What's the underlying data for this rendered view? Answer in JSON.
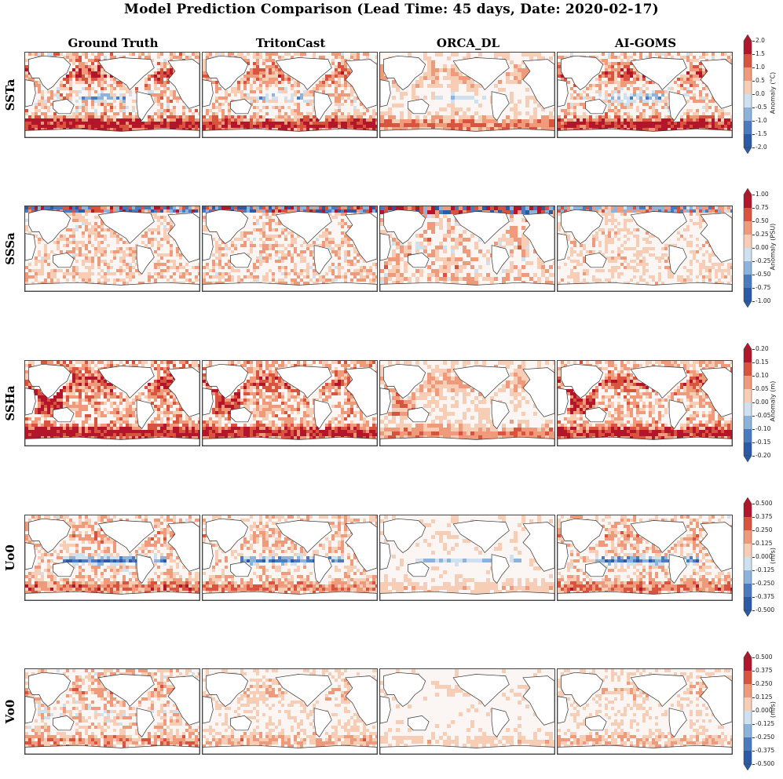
{
  "chart_data": {
    "type": "heatmap",
    "title": "Model Prediction Comparison (Lead Time: 45 days, Date: 2020-02-17)",
    "columns": [
      "Ground Truth",
      "TritonCast",
      "ORCA_DL",
      "AI-GOMS"
    ],
    "rows": [
      {
        "name": "SSTa",
        "colorbar_label": "Anomaly (°C)",
        "range": [
          -2.0,
          2.0
        ],
        "ticks": [
          "2.0",
          "1.5",
          "1.0",
          "0.5",
          "0.0",
          "-0.5",
          "-1.0",
          "-1.5",
          "-2.0"
        ]
      },
      {
        "name": "SSSa",
        "colorbar_label": "Anomaly (PSU)",
        "range": [
          -1.0,
          1.0
        ],
        "ticks": [
          "1.00",
          "0.75",
          "0.50",
          "0.25",
          "0.00",
          "-0.25",
          "-0.50",
          "-0.75",
          "-1.00"
        ]
      },
      {
        "name": "SSHa",
        "colorbar_label": "Anomaly (m)",
        "range": [
          -0.2,
          0.2
        ],
        "ticks": [
          "0.20",
          "0.15",
          "0.10",
          "0.05",
          "0.00",
          "-0.05",
          "-0.10",
          "-0.15",
          "-0.20"
        ]
      },
      {
        "name": "Uo0",
        "colorbar_label": "(m/s)",
        "range": [
          -0.5,
          0.5
        ],
        "ticks": [
          "0.500",
          "0.375",
          "0.250",
          "0.125",
          "0.000",
          "-0.125",
          "-0.250",
          "-0.375",
          "-0.500"
        ]
      },
      {
        "name": "Vo0",
        "colorbar_label": "(m/s)",
        "range": [
          -0.5,
          0.5
        ],
        "ticks": [
          "0.500",
          "0.375",
          "0.250",
          "0.125",
          "0.000",
          "-0.125",
          "-0.250",
          "-0.375",
          "-0.500"
        ]
      }
    ],
    "colormap": [
      "#2b5aa6",
      "#4a7bc0",
      "#8cb3dc",
      "#cfe0ef",
      "#f7f4f2",
      "#f7cdb6",
      "#ef9a7a",
      "#d9543f",
      "#b3162a"
    ]
  }
}
